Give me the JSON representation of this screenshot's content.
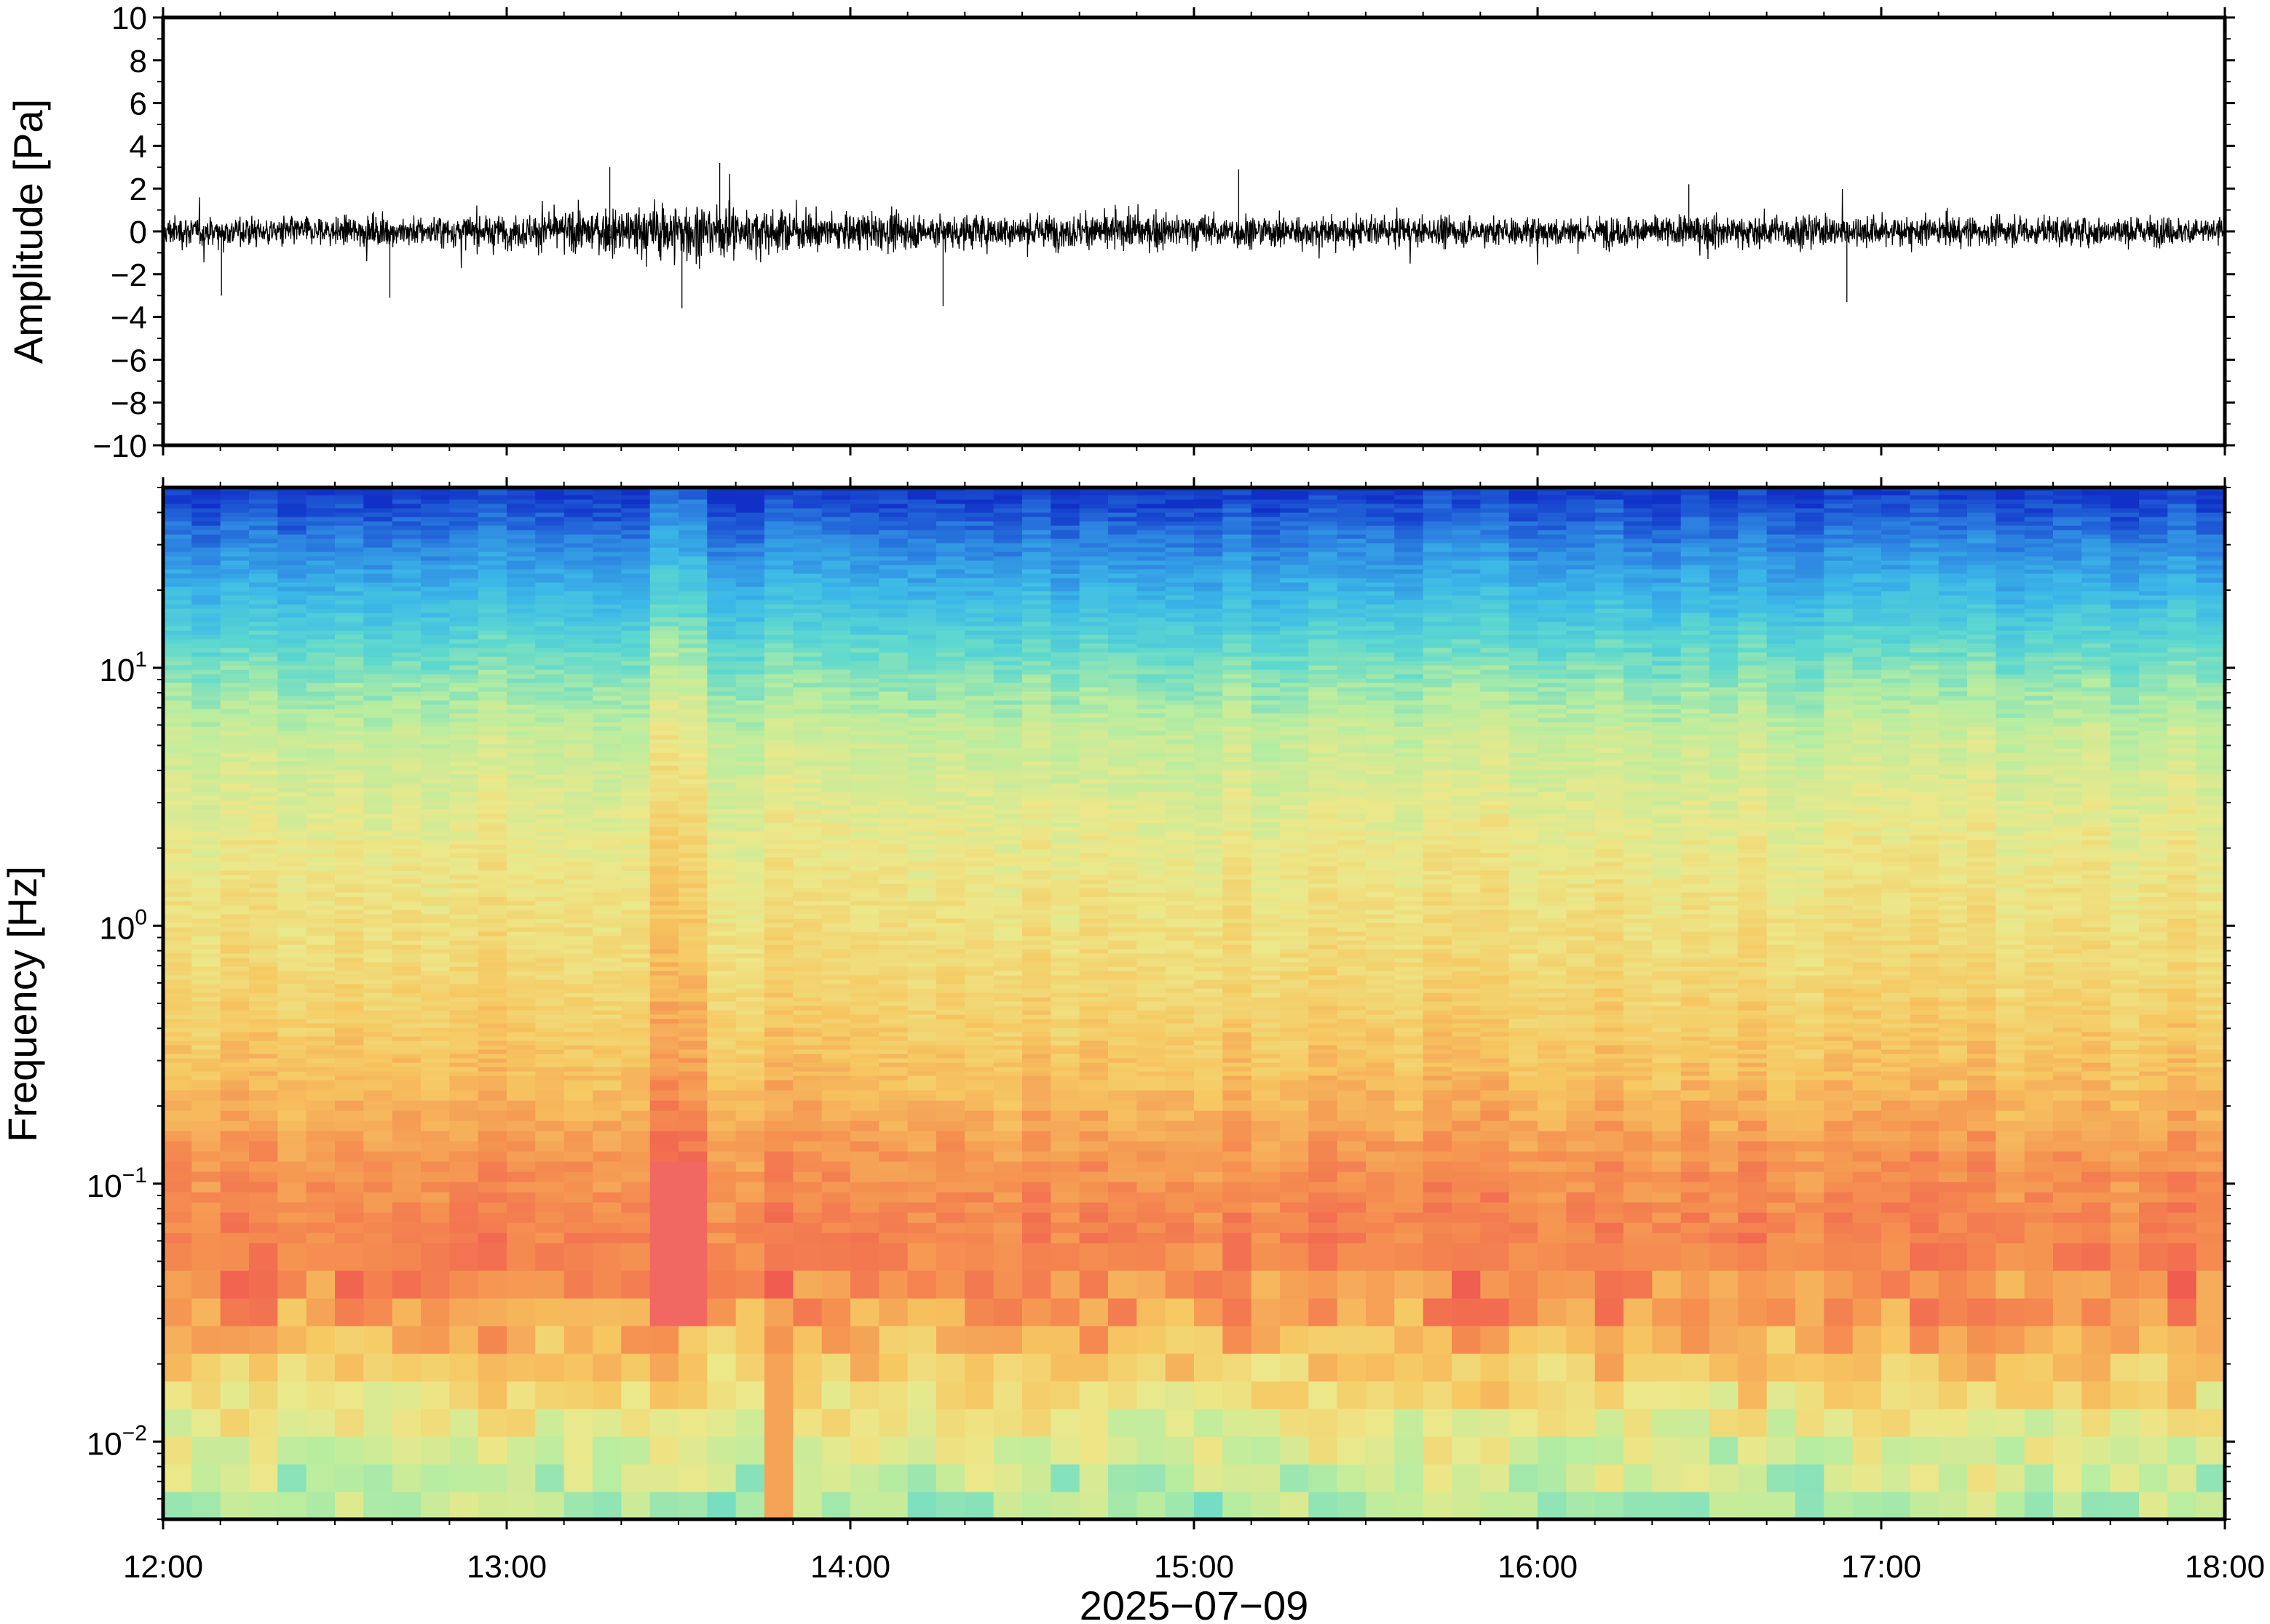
{
  "chart_data": [
    {
      "type": "line",
      "panel": "waveform",
      "ylabel": "Amplitude [Pa]",
      "ylim": [
        -10,
        10
      ],
      "yticks": [
        10,
        8,
        6,
        4,
        2,
        0,
        -2,
        -4,
        -6,
        -8,
        -10
      ],
      "ytick_labels": [
        "10",
        "8",
        "6",
        "4",
        "2",
        "0",
        "−2",
        "−4",
        "−6",
        "−8",
        "−10"
      ],
      "xlim_hours": [
        12,
        18
      ],
      "envelope": {
        "x_hours": [
          12.0,
          12.5,
          13.0,
          13.25,
          13.5,
          13.75,
          14.0,
          14.25,
          14.5,
          15.0,
          15.5,
          16.0,
          16.5,
          17.0,
          17.5,
          18.0
        ],
        "y_abs": [
          1.3,
          1.2,
          1.4,
          1.8,
          2.6,
          1.8,
          1.5,
          1.5,
          1.4,
          1.5,
          1.2,
          1.2,
          1.4,
          1.3,
          1.2,
          1.2
        ]
      },
      "spikes": [
        {
          "x_hours": 13.51,
          "y": -3.6
        },
        {
          "x_hours": 13.62,
          "y": 3.2
        },
        {
          "x_hours": 14.27,
          "y": -3.5
        },
        {
          "x_hours": 15.13,
          "y": 2.9
        },
        {
          "x_hours": 13.3,
          "y": 3.0
        },
        {
          "x_hours": 12.17,
          "y": -3.0
        },
        {
          "x_hours": 12.66,
          "y": -3.1
        },
        {
          "x_hours": 16.9,
          "y": -3.3
        },
        {
          "x_hours": 16.44,
          "y": 2.2
        }
      ]
    },
    {
      "type": "heatmap",
      "panel": "spectrogram",
      "ylabel": "Frequency [Hz]",
      "yscale": "log",
      "ylim_hz": [
        0.005,
        50
      ],
      "yticks_hz": [
        0.01,
        0.1,
        1,
        10
      ],
      "ytick_labels": [
        {
          "base": "10",
          "exp": "−2"
        },
        {
          "base": "10",
          "exp": "−1"
        },
        {
          "base": "10",
          "exp": "0"
        },
        {
          "base": "10",
          "exp": "1"
        }
      ],
      "xlim_hours": [
        12,
        18
      ],
      "colormap": [
        "#1030c8",
        "#2b7fe0",
        "#3cb8e8",
        "#5cd8d0",
        "#b8eda0",
        "#ece88a",
        "#f6c862",
        "#f59050",
        "#f05a50",
        "#f28080"
      ],
      "features": {
        "event_time_hours": 13.5,
        "event_high_bin_hours": [
          13.75,
          13.83
        ]
      }
    }
  ],
  "xaxis": {
    "tick_labels": [
      "12:00",
      "13:00",
      "14:00",
      "15:00",
      "16:00",
      "17:00",
      "18:00"
    ],
    "tick_hours": [
      12,
      13,
      14,
      15,
      16,
      17,
      18
    ],
    "date_label": "2025−07−09"
  }
}
